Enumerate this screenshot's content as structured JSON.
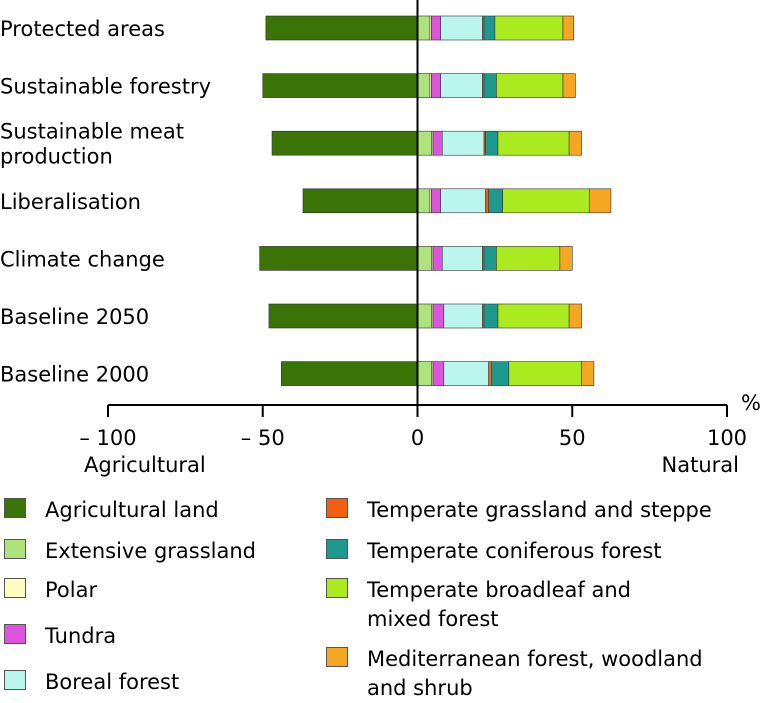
{
  "chart_data": {
    "type": "bar",
    "orientation": "horizontal",
    "stacked": true,
    "xlim": [
      -100,
      100
    ],
    "x_ticks": [
      "– 100",
      "– 50",
      "0",
      "50",
      "100"
    ],
    "x_unit": "%",
    "left_axis_label": "Agricultural",
    "right_axis_label": "Natural",
    "categories": [
      "Protected areas",
      "Sustainable forestry",
      "Sustainable meat\nproduction",
      "Liberalisation",
      "Climate change",
      "Baseline 2050",
      "Baseline 2000"
    ],
    "series": [
      {
        "name": "Agricultural land",
        "color": "#3a7306",
        "values": [
          -49,
          -50,
          -47,
          -37,
          -51,
          -48,
          -44
        ]
      },
      {
        "name": "Extensive grassland",
        "color": "#ade37d",
        "values": [
          4,
          4,
          4.5,
          4,
          4.5,
          4.5,
          4.5
        ]
      },
      {
        "name": "Polar",
        "color": "#ffffc0",
        "values": [
          0.5,
          0.5,
          0.5,
          0.5,
          0.5,
          0.5,
          0.5
        ]
      },
      {
        "name": "Tundra",
        "color": "#dd55dd",
        "values": [
          3,
          3,
          3,
          3,
          3,
          3.5,
          3.5
        ]
      },
      {
        "name": "Boreal forest",
        "color": "#baf6ee",
        "values": [
          13.5,
          13.5,
          13.5,
          14.5,
          13,
          12.5,
          14.5
        ]
      },
      {
        "name": "Temperate grassland and steppe",
        "color": "#f06010",
        "values": [
          0.5,
          0.5,
          0.5,
          1,
          0.5,
          0.5,
          1
        ]
      },
      {
        "name": "Temperate coniferous forest",
        "color": "#1e9990",
        "values": [
          3.5,
          4,
          4,
          4.5,
          4,
          4.5,
          5.5
        ]
      },
      {
        "name": "Temperate broadleaf and\nmixed forest",
        "color": "#aaea1e",
        "values": [
          22,
          21.5,
          23,
          28,
          20.5,
          23,
          23.5
        ]
      },
      {
        "name": "Mediterranean forest, woodland\nand shrub",
        "color": "#f5a623",
        "values": [
          3.5,
          4,
          4,
          7,
          4,
          4,
          4
        ]
      }
    ]
  }
}
